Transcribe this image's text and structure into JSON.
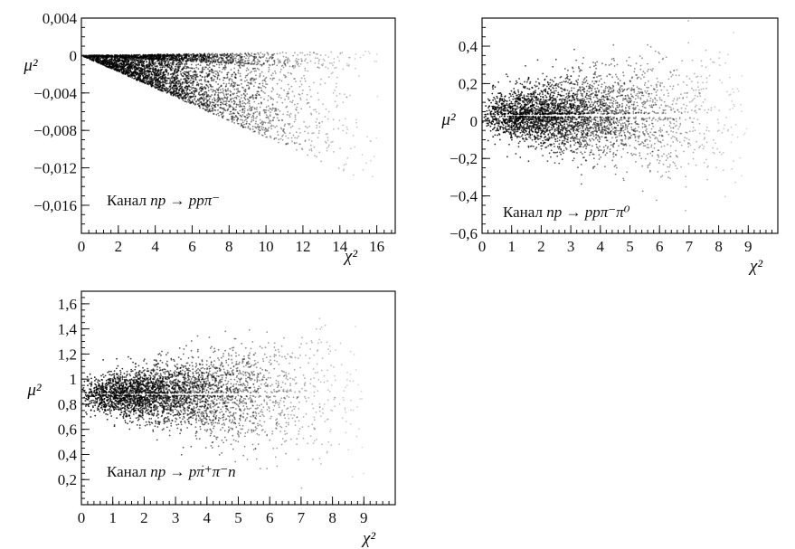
{
  "chart_data": [
    {
      "type": "scatter",
      "title": "",
      "xlabel": "χ²",
      "ylabel": "μ²",
      "xlim": [
        0,
        17
      ],
      "ylim": [
        -0.019,
        0.004
      ],
      "xticks": [
        0,
        2,
        4,
        6,
        8,
        10,
        12,
        14,
        16
      ],
      "xtick_labels": [
        "0",
        "2",
        "4",
        "6",
        "8",
        "10",
        "12",
        "14",
        "16"
      ],
      "yticks": [
        0.004,
        0,
        -0.004,
        -0.008,
        -0.012,
        -0.016
      ],
      "ytick_labels": [
        "0,004",
        "0",
        "−0,004",
        "−0,008",
        "−0,012",
        "−0,016"
      ],
      "annotation": {
        "prefix": "Канал ",
        "reaction": "np → ppπ⁻"
      },
      "distribution": {
        "shape": "wedge",
        "origin": [
          0,
          0
        ],
        "upper_edge": [
          [
            0,
            0
          ],
          [
            16,
            0.0005
          ]
        ],
        "lower_edge": [
          [
            0,
            0
          ],
          [
            16,
            -0.014
          ]
        ],
        "x_extent": 16.2,
        "marker_color": "#000000",
        "grid": false,
        "legend": "none"
      }
    },
    {
      "type": "scatter",
      "title": "",
      "xlabel": "χ²",
      "ylabel": "μ²",
      "xlim": [
        0,
        10
      ],
      "ylim": [
        -0.6,
        0.55
      ],
      "xticks": [
        0,
        1,
        2,
        3,
        4,
        5,
        6,
        7,
        8,
        9
      ],
      "xtick_labels": [
        "0",
        "1",
        "2",
        "3",
        "4",
        "5",
        "6",
        "7",
        "8",
        "9"
      ],
      "yticks": [
        0.4,
        0.2,
        0,
        -0.2,
        -0.4,
        -0.6
      ],
      "ytick_labels": [
        "0,4",
        "0,2",
        "0",
        "−0,2",
        "−0,4",
        "−0,6"
      ],
      "annotation": {
        "prefix": "Канал ",
        "reaction": "np → ppπ⁻π⁰"
      },
      "distribution": {
        "shape": "funnel",
        "center": 0.03,
        "spread_at_x0": 0.12,
        "spread_at_xmax": 0.42,
        "center_gap": true,
        "x_extent": 9,
        "marker_color": "#000000",
        "grid": false,
        "legend": "none"
      }
    },
    {
      "type": "scatter",
      "title": "",
      "xlabel": "χ²",
      "ylabel": "μ²",
      "xlim": [
        0,
        10
      ],
      "ylim": [
        0,
        1.7
      ],
      "xticks": [
        0,
        1,
        2,
        3,
        4,
        5,
        6,
        7,
        8,
        9
      ],
      "xtick_labels": [
        "0",
        "1",
        "2",
        "3",
        "4",
        "5",
        "6",
        "7",
        "8",
        "9"
      ],
      "yticks": [
        1.6,
        1.4,
        1.2,
        1,
        0.8,
        0.6,
        0.4,
        0.2
      ],
      "ytick_labels": [
        "1,6",
        "1,4",
        "1,2",
        "1",
        "0,8",
        "0,6",
        "0,4",
        "0,2"
      ],
      "annotation": {
        "prefix": "Канал ",
        "reaction": "np → pπ⁺π⁻n"
      },
      "distribution": {
        "shape": "funnel",
        "center": 0.88,
        "spread_at_x0": 0.12,
        "spread_at_xmax": 0.65,
        "center_gap": true,
        "x_extent": 9,
        "marker_color": "#000000",
        "grid": false,
        "legend": "none"
      }
    }
  ]
}
